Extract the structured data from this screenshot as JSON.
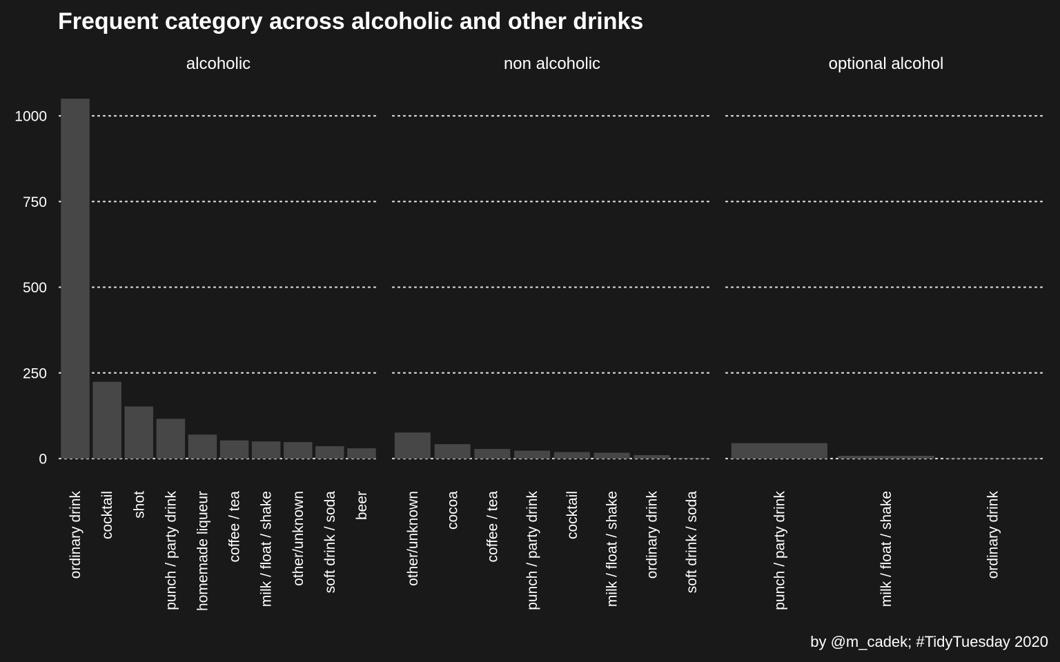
{
  "chart_data": {
    "type": "bar",
    "title": "Frequent category across alcoholic and other drinks",
    "caption": "by @m_cadek; #TidyTuesday 2020",
    "xlabel": "",
    "ylabel": "",
    "ylim": [
      0,
      1050
    ],
    "yticks": [
      0,
      250,
      500,
      750,
      1000
    ],
    "ytick_labels": [
      "0",
      "250",
      "500",
      "750",
      "1000"
    ],
    "grid": "horizontal dotted",
    "bar_color": "#474747",
    "background_color": "#191919",
    "text_color": "#ffffff",
    "facets": [
      {
        "name": "alcoholic",
        "categories": [
          "ordinary drink",
          "cocktail",
          "shot",
          "punch / party drink",
          "homemade liqueur",
          "coffee / tea",
          "milk / float / shake",
          "other/unknown",
          "soft drink / soda",
          "beer"
        ],
        "values": [
          1050,
          224,
          152,
          116,
          70,
          53,
          50,
          48,
          36,
          30
        ]
      },
      {
        "name": "non alcoholic",
        "categories": [
          "other/unknown",
          "cocoa",
          "coffee / tea",
          "punch / party drink",
          "cocktail",
          "milk / float / shake",
          "ordinary drink",
          "soft drink / soda"
        ],
        "values": [
          76,
          42,
          28,
          23,
          19,
          17,
          10,
          2
        ]
      },
      {
        "name": "optional alcohol",
        "categories": [
          "punch / party drink",
          "milk / float / shake",
          "ordinary drink"
        ],
        "values": [
          45,
          8,
          1
        ]
      }
    ]
  }
}
